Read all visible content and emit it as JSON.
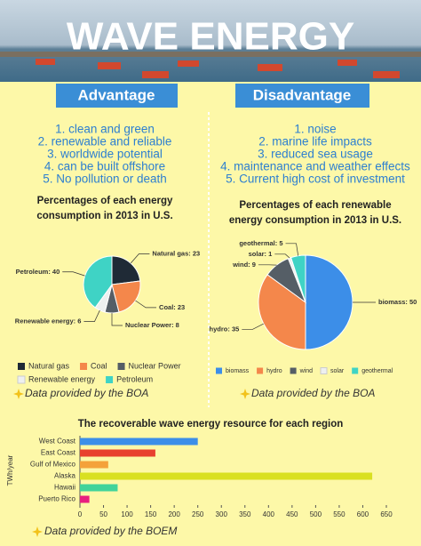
{
  "header": {
    "title": "WAVE ENERGY"
  },
  "advantage": {
    "label": "Advantage",
    "items": [
      "1. clean and green",
      "2. renewable and reliable",
      "3. worldwide potential",
      "4. can be built offshore",
      "5. No pollution or death"
    ]
  },
  "disadvantage": {
    "label": "Disadvantage",
    "items": [
      "1. noise",
      "2. marine life impacts",
      "3. reduced sea usage",
      "4. maintenance and weather effects",
      "5. Current high cost of investment"
    ]
  },
  "chart_data": [
    {
      "type": "pie",
      "title": "Percentages of each energy consumption in 2013 in U.S.",
      "categories": [
        "Natural gas",
        "Coal",
        "Nuclear Power",
        "Renewable energy",
        "Petroleum"
      ],
      "values": [
        23,
        23,
        8,
        6,
        40
      ],
      "value_labels": [
        "Natural gas: 23",
        "Coal: 23",
        "Nuclear Power: 8",
        "Renewable energy: 6",
        "Petroleum: 40"
      ],
      "colors": [
        "#1f2a36",
        "#f4874b",
        "#555e66",
        "#eef0f0",
        "#3fd3c5"
      ],
      "legend": "bottom",
      "source": "Data provided by the BOA"
    },
    {
      "type": "pie",
      "title": "Percentages of each renewable energy consumption in 2013 in U.S.",
      "categories": [
        "biomass",
        "hydro",
        "wind",
        "solar",
        "geothermal"
      ],
      "values": [
        50,
        35,
        9,
        1,
        5
      ],
      "value_labels": [
        "biomass: 50",
        "hydro: 35",
        "wind: 9",
        "solar: 1",
        "geothermal: 5"
      ],
      "colors": [
        "#3c8ee8",
        "#f4874b",
        "#555e66",
        "#eef0f0",
        "#3fd3c5"
      ],
      "legend": "bottom",
      "source": "Data provided by the BOA"
    },
    {
      "type": "hbar",
      "title": "The recoverable wave energy resource for each region",
      "y_label": "TWh/year",
      "categories": [
        "West Coast",
        "East Coast",
        "Gulf of Mexico",
        "Alaska",
        "Hawaii",
        "Puerto Rico"
      ],
      "values": [
        250,
        160,
        60,
        620,
        80,
        20
      ],
      "colors": [
        "#3c8ee8",
        "#e8412e",
        "#f4a23a",
        "#d9e021",
        "#41d39a",
        "#e8207f"
      ],
      "xlim": [
        0,
        650
      ],
      "xticks": [
        0,
        50,
        100,
        150,
        200,
        250,
        300,
        350,
        400,
        450,
        500,
        550,
        600,
        650
      ],
      "source": "Data provided by the BOEM"
    }
  ]
}
